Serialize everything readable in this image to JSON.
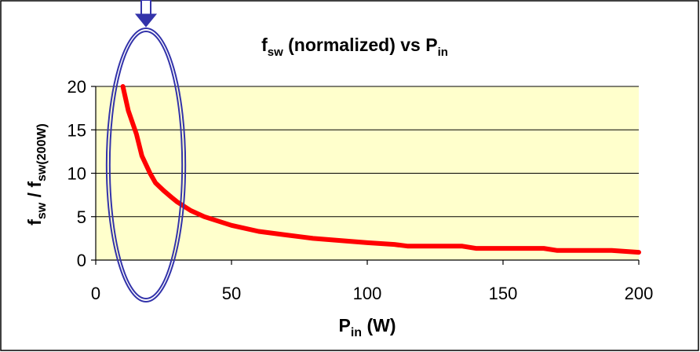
{
  "chart_data": {
    "type": "line",
    "title": {
      "main": "f",
      "main_sub": "sw",
      "mid": " (normalized) vs P",
      "mid_sub": "in"
    },
    "xlabel": {
      "main": "P",
      "sub": "in",
      "suffix": " (W)"
    },
    "ylabel": {
      "part1": "f",
      "part1_sub": "sw",
      "sep": " / ",
      "part2": "f",
      "part2_sub": "sw(200W)"
    },
    "xlim": [
      0,
      200
    ],
    "ylim": [
      0,
      20
    ],
    "xticks": [
      0,
      50,
      100,
      150,
      200
    ],
    "yticks": [
      0,
      5,
      10,
      15,
      20
    ],
    "grid": "horizontal",
    "series": [
      {
        "x": [
          10,
          12,
          15,
          17,
          20,
          22,
          25,
          28,
          30,
          35,
          40,
          45,
          50,
          60,
          70,
          80,
          90,
          100,
          110,
          115,
          120,
          130,
          135,
          140,
          150,
          160,
          165,
          170,
          175,
          180,
          190,
          200
        ],
        "y": [
          20,
          17.2,
          14.5,
          12,
          10,
          8.9,
          8,
          7.2,
          6.7,
          5.7,
          5,
          4.5,
          4,
          3.3,
          2.9,
          2.5,
          2.25,
          2,
          1.8,
          1.6,
          1.6,
          1.6,
          1.6,
          1.35,
          1.35,
          1.35,
          1.35,
          1.1,
          1.1,
          1.1,
          1.1,
          0.9
        ],
        "color": "#ff0000"
      }
    ],
    "annotation": {
      "type": "ellipse-with-arrow",
      "x_range": [
        4,
        33
      ],
      "color": "#3333aa"
    },
    "colors": {
      "plot_background": "#ffffcc",
      "line": "#ff0000",
      "annotation": "#3333aa"
    }
  }
}
